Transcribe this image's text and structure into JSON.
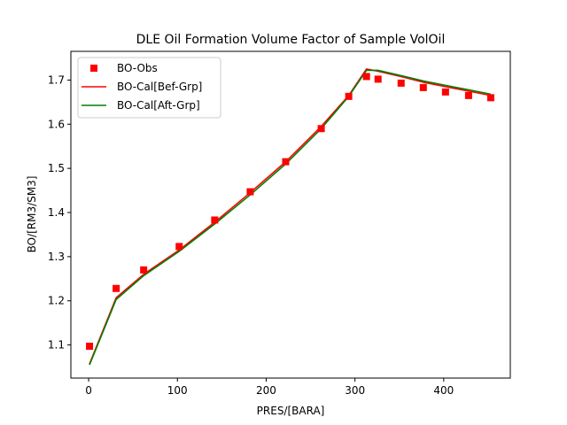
{
  "chart_data": {
    "type": "line",
    "title": "DLE Oil Formation Volume Factor of Sample VolOil",
    "xlabel": "PRES/[BARA]",
    "ylabel": "BO/[RM3/SM3]",
    "xlim": [
      -20,
      475
    ],
    "ylim": [
      1.025,
      1.765
    ],
    "xticks": [
      0,
      100,
      200,
      300,
      400
    ],
    "yticks": [
      1.1,
      1.2,
      1.3,
      1.4,
      1.5,
      1.6,
      1.7
    ],
    "grid": false,
    "legend_position": "upper-left",
    "series": [
      {
        "name": "BO-Obs",
        "kind": "marker",
        "marker": "square",
        "color": "#ff0000",
        "x": [
          1,
          31,
          62,
          102,
          142,
          182,
          222,
          262,
          293,
          313,
          326,
          352,
          377,
          402,
          428,
          453
        ],
        "y": [
          1.097,
          1.228,
          1.27,
          1.323,
          1.383,
          1.447,
          1.515,
          1.59,
          1.663,
          1.708,
          1.702,
          1.693,
          1.683,
          1.673,
          1.665,
          1.66
        ]
      },
      {
        "name": "BO-Cal[Bef-Grp]",
        "kind": "line",
        "color": "#ff0000",
        "x": [
          1,
          31,
          62,
          102,
          142,
          182,
          222,
          262,
          293,
          313,
          326,
          352,
          377,
          402,
          428,
          453
        ],
        "y": [
          1.057,
          1.207,
          1.26,
          1.315,
          1.378,
          1.445,
          1.515,
          1.595,
          1.665,
          1.725,
          1.72,
          1.708,
          1.695,
          1.685,
          1.675,
          1.665
        ]
      },
      {
        "name": "BO-Cal[Aft-Grp]",
        "kind": "line",
        "color": "#008000",
        "x": [
          1,
          31,
          62,
          102,
          142,
          182,
          222,
          262,
          293,
          313,
          326,
          352,
          377,
          402,
          428,
          453
        ],
        "y": [
          1.055,
          1.203,
          1.257,
          1.312,
          1.374,
          1.44,
          1.51,
          1.59,
          1.663,
          1.722,
          1.722,
          1.71,
          1.698,
          1.688,
          1.678,
          1.668
        ]
      }
    ]
  }
}
